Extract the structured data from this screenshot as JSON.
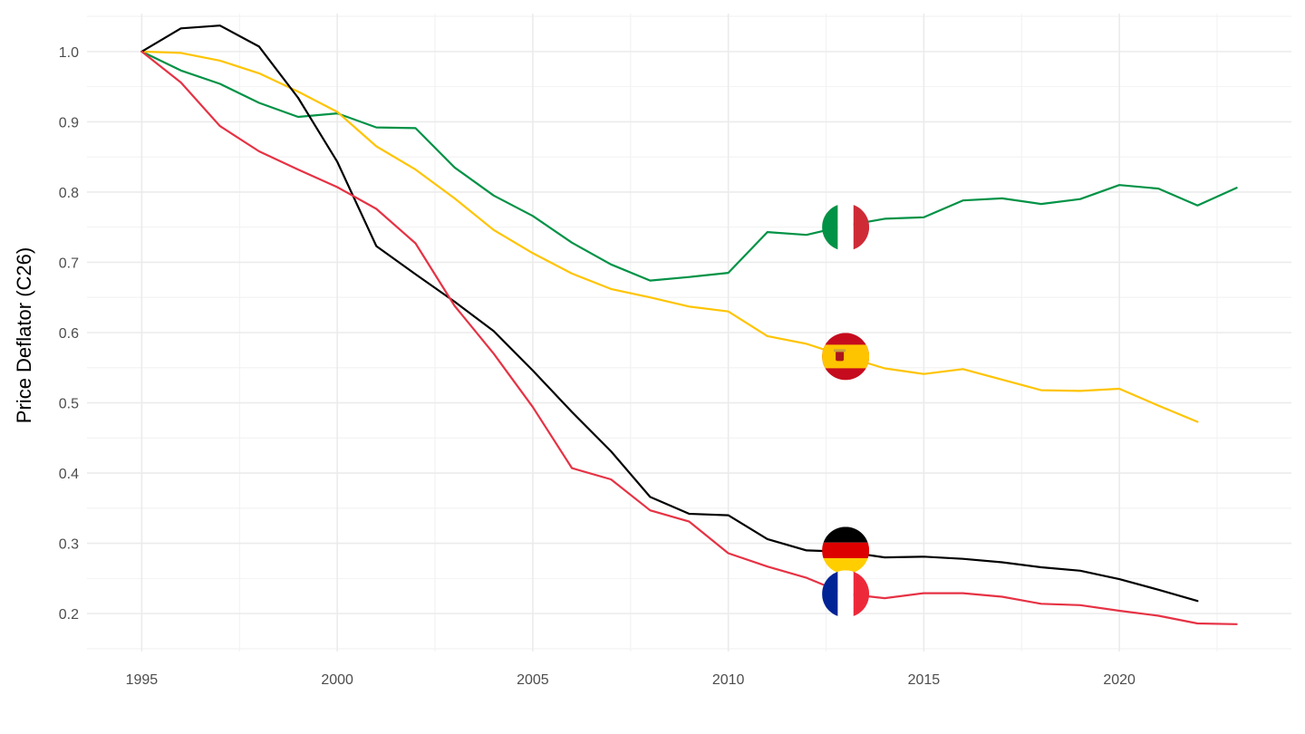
{
  "chart_data": {
    "type": "line",
    "title": "",
    "xlabel": "",
    "ylabel": "Price Deflator (C26)",
    "xlim": [
      1993.6,
      2024.4
    ],
    "ylim": [
      0.146,
      1.054
    ],
    "x_ticks": [
      "1995",
      "2000",
      "2005",
      "2010",
      "2015",
      "2020"
    ],
    "y_ticks": [
      "0.2",
      "0.3",
      "0.4",
      "0.5",
      "0.6",
      "0.7",
      "0.8",
      "0.9",
      "1.0"
    ],
    "grid": true,
    "legend": "none",
    "series": [
      {
        "key": "italy",
        "color": "#009246",
        "flag": "italy-flag",
        "flag_point": [
          2013,
          0.75
        ],
        "x": [
          1995,
          1996,
          1997,
          1998,
          1999,
          2000,
          2001,
          2002,
          2003,
          2004,
          2005,
          2006,
          2007,
          2008,
          2009,
          2010,
          2011,
          2012,
          2013,
          2014,
          2015,
          2016,
          2017,
          2018,
          2019,
          2020,
          2021,
          2022,
          2023
        ],
        "values": [
          1.0,
          0.973,
          0.954,
          0.927,
          0.907,
          0.912,
          0.892,
          0.891,
          0.835,
          0.795,
          0.766,
          0.728,
          0.697,
          0.674,
          0.679,
          0.685,
          0.743,
          0.739,
          0.752,
          0.762,
          0.764,
          0.788,
          0.791,
          0.783,
          0.79,
          0.81,
          0.805,
          0.781,
          0.806
        ]
      },
      {
        "key": "spain",
        "color": "#FFC400",
        "flag": "spain-flag",
        "flag_point": [
          2013,
          0.566
        ],
        "x": [
          1995,
          1996,
          1997,
          1998,
          1999,
          2000,
          2001,
          2002,
          2003,
          2004,
          2005,
          2006,
          2007,
          2008,
          2009,
          2010,
          2011,
          2012,
          2013,
          2014,
          2015,
          2016,
          2017,
          2018,
          2019,
          2020,
          2021,
          2022
        ],
        "values": [
          1.0,
          0.998,
          0.987,
          0.969,
          0.943,
          0.914,
          0.865,
          0.832,
          0.791,
          0.746,
          0.713,
          0.684,
          0.662,
          0.65,
          0.637,
          0.63,
          0.595,
          0.584,
          0.566,
          0.549,
          0.541,
          0.548,
          0.533,
          0.518,
          0.517,
          0.52,
          0.496,
          0.473
        ]
      },
      {
        "key": "germany",
        "color": "#000000",
        "flag": "germany-flag",
        "flag_point": [
          2013,
          0.29
        ],
        "x": [
          1995,
          1996,
          1997,
          1998,
          1999,
          2000,
          2001,
          2002,
          2003,
          2004,
          2005,
          2006,
          2007,
          2008,
          2009,
          2010,
          2011,
          2012,
          2013,
          2014,
          2015,
          2016,
          2017,
          2018,
          2019,
          2020,
          2021,
          2022
        ],
        "values": [
          1.0,
          1.033,
          1.037,
          1.007,
          0.934,
          0.843,
          0.723,
          0.683,
          0.644,
          0.602,
          0.546,
          0.487,
          0.431,
          0.366,
          0.342,
          0.34,
          0.306,
          0.29,
          0.288,
          0.28,
          0.281,
          0.278,
          0.273,
          0.266,
          0.261,
          0.249,
          0.234,
          0.218
        ]
      },
      {
        "key": "france",
        "color": "#E63244",
        "flag": "france-flag",
        "flag_point": [
          2013,
          0.228
        ],
        "x": [
          1995,
          1996,
          1997,
          1998,
          1999,
          2000,
          2001,
          2002,
          2003,
          2004,
          2005,
          2006,
          2007,
          2008,
          2009,
          2010,
          2011,
          2012,
          2013,
          2014,
          2015,
          2016,
          2017,
          2018,
          2019,
          2020,
          2021,
          2022,
          2023
        ],
        "values": [
          1.0,
          0.956,
          0.894,
          0.858,
          0.832,
          0.807,
          0.776,
          0.727,
          0.638,
          0.57,
          0.494,
          0.407,
          0.391,
          0.347,
          0.331,
          0.286,
          0.267,
          0.251,
          0.228,
          0.222,
          0.229,
          0.229,
          0.224,
          0.214,
          0.212,
          0.204,
          0.197,
          0.186,
          0.185
        ]
      }
    ]
  }
}
